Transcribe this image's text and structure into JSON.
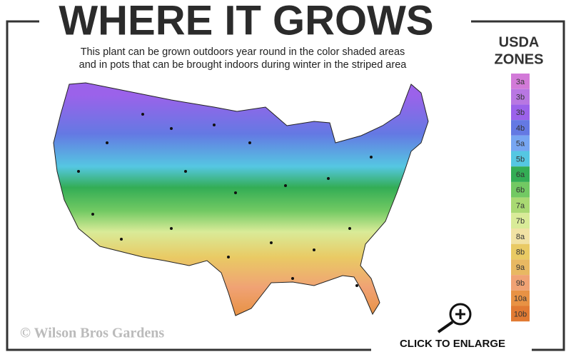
{
  "header": {
    "title": "WHERE IT GROWS",
    "subtitle": [
      "This plant can be grown outdoors year round in the color shaded areas",
      "and in pots that can be brought indoors during winter in the striped area"
    ]
  },
  "legend": {
    "title": [
      "USDA",
      "ZONES"
    ],
    "zones": [
      {
        "label": "3a",
        "color": "#d27ad8"
      },
      {
        "label": "3b",
        "color": "#b877e2"
      },
      {
        "label": "3b",
        "color": "#9b62ea"
      },
      {
        "label": "4b",
        "color": "#6479e3"
      },
      {
        "label": "5a",
        "color": "#77a6f2"
      },
      {
        "label": "5b",
        "color": "#55c7e2"
      },
      {
        "label": "6a",
        "color": "#33ad55"
      },
      {
        "label": "6b",
        "color": "#72c963"
      },
      {
        "label": "7a",
        "color": "#a9d972"
      },
      {
        "label": "7b",
        "color": "#d9eb98"
      },
      {
        "label": "8a",
        "color": "#f1e2a4"
      },
      {
        "label": "8b",
        "color": "#e9ca64"
      },
      {
        "label": "9a",
        "color": "#e8b862"
      },
      {
        "label": "9b",
        "color": "#f0a274"
      },
      {
        "label": "10a",
        "color": "#e89244"
      },
      {
        "label": "10b",
        "color": "#e17a33"
      }
    ]
  },
  "footer": {
    "copyright": "© Wilson Bros Gardens",
    "cta": "CLICK TO ENLARGE"
  }
}
